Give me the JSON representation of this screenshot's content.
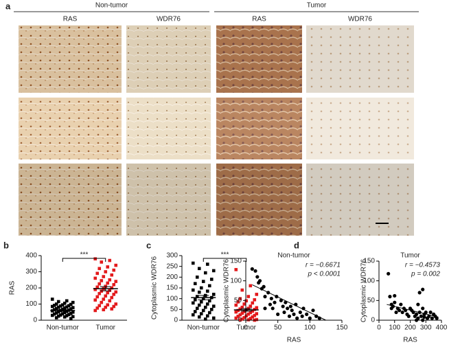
{
  "panel_a": {
    "label": "a",
    "groups": [
      {
        "name": "Non-tumor",
        "columns": [
          "RAS",
          "WDR76"
        ]
      },
      {
        "name": "Tumor",
        "columns": [
          "RAS",
          "WDR76"
        ]
      }
    ]
  },
  "chart_data": [
    {
      "type": "dot",
      "panel_label": "b",
      "ylabel": "RAS",
      "categories": [
        "Non-tumor",
        "Tumor"
      ],
      "colors": [
        "#000000",
        "#e31a1c"
      ],
      "markers": [
        "square",
        "square"
      ],
      "values": [
        [
          130,
          120,
          115,
          110,
          105,
          100,
          98,
          95,
          92,
          90,
          88,
          85,
          82,
          80,
          78,
          75,
          72,
          70,
          68,
          65,
          62,
          60,
          58,
          55,
          52,
          50,
          48,
          45,
          42,
          40,
          38,
          35,
          32,
          30,
          28,
          25,
          22,
          20,
          15,
          10
        ],
        [
          380,
          370,
          360,
          340,
          330,
          320,
          310,
          300,
          290,
          280,
          270,
          260,
          250,
          245,
          240,
          230,
          225,
          220,
          210,
          205,
          200,
          195,
          190,
          185,
          180,
          175,
          170,
          165,
          160,
          150,
          145,
          140,
          130,
          125,
          120,
          110,
          100,
          95,
          90,
          85,
          80,
          75,
          70,
          65,
          60
        ]
      ],
      "mean": [
        60,
        195
      ],
      "sem": [
        5,
        13
      ],
      "significance": "***",
      "ylim": [
        0,
        400
      ],
      "yticks": [
        0,
        100,
        200,
        300,
        400
      ]
    },
    {
      "type": "dot",
      "panel_label": "c",
      "ylabel": "Cytoplasmic WDR76",
      "categories": [
        "Non-tumor",
        "Tumor"
      ],
      "colors": [
        "#000000",
        "#e31a1c"
      ],
      "markers": [
        "square",
        "square"
      ],
      "values": [
        [
          265,
          260,
          240,
          230,
          220,
          200,
          190,
          180,
          170,
          160,
          150,
          140,
          135,
          130,
          120,
          115,
          110,
          105,
          100,
          95,
          90,
          85,
          80,
          75,
          70,
          65,
          60,
          55,
          50,
          45,
          40,
          35,
          30,
          25,
          20,
          15,
          10,
          5
        ],
        [
          235,
          160,
          140,
          120,
          110,
          100,
          95,
          90,
          85,
          80,
          75,
          70,
          65,
          60,
          58,
          55,
          52,
          50,
          48,
          45,
          42,
          40,
          38,
          35,
          32,
          30,
          28,
          25,
          22,
          20,
          18,
          15,
          12,
          10,
          8,
          5,
          3,
          2,
          1,
          0
        ]
      ],
      "mean": [
        105,
        48
      ],
      "sem": [
        10,
        6
      ],
      "significance": "***",
      "ylim": [
        0,
        300
      ],
      "yticks": [
        0,
        50,
        100,
        150,
        200,
        250,
        300
      ]
    },
    {
      "type": "scatter",
      "panel_label": "d",
      "title": "Non-tumor",
      "xlabel": "RAS",
      "ylabel": "Cytoplasmic WDR76",
      "color": "#000000",
      "x": [
        10,
        15,
        18,
        20,
        22,
        25,
        28,
        30,
        30,
        35,
        38,
        40,
        42,
        45,
        48,
        50,
        55,
        58,
        60,
        62,
        65,
        68,
        70,
        72,
        75,
        78,
        80,
        85,
        88,
        90,
        95,
        100,
        105,
        110,
        115
      ],
      "values": [
        130,
        125,
        110,
        95,
        100,
        80,
        85,
        60,
        30,
        70,
        40,
        55,
        30,
        45,
        60,
        15,
        50,
        35,
        20,
        45,
        30,
        10,
        35,
        25,
        15,
        40,
        5,
        20,
        10,
        30,
        15,
        5,
        25,
        10,
        5
      ],
      "fit": {
        "x": [
          10,
          125
        ],
        "y": [
          90,
          0
        ]
      },
      "annotations": [
        "r = −0.6671",
        "p < 0.0001"
      ],
      "xlim": [
        0,
        150
      ],
      "xticks": [
        0,
        50,
        100,
        150
      ],
      "ylim": [
        0,
        150
      ],
      "yticks": [
        0,
        50,
        100,
        150
      ]
    },
    {
      "type": "scatter",
      "title": "Tumor",
      "xlabel": "RAS",
      "ylabel": "Cytoplasmic WDR76",
      "color": "#000000",
      "x": [
        60,
        70,
        80,
        80,
        90,
        100,
        110,
        120,
        130,
        140,
        150,
        160,
        170,
        180,
        190,
        200,
        210,
        220,
        230,
        240,
        250,
        250,
        260,
        260,
        270,
        280,
        280,
        290,
        300,
        310,
        320,
        330,
        340,
        350,
        360,
        370,
        280,
        290,
        240,
        100
      ],
      "values": [
        118,
        60,
        40,
        30,
        35,
        45,
        20,
        30,
        25,
        40,
        20,
        30,
        25,
        15,
        10,
        30,
        25,
        20,
        10,
        15,
        40,
        5,
        70,
        20,
        10,
        78,
        30,
        15,
        20,
        5,
        10,
        20,
        5,
        15,
        10,
        5,
        0,
        8,
        0,
        62
      ],
      "fit": {
        "x": [
          50,
          380
        ],
        "y": [
          40,
          8
        ]
      },
      "annotations": [
        "r = −0.4573",
        "p = 0.002"
      ],
      "xlim": [
        0,
        400
      ],
      "xticks": [
        0,
        100,
        200,
        300,
        400
      ],
      "ylim": [
        0,
        150
      ],
      "yticks": [
        0,
        50,
        100,
        150
      ]
    }
  ]
}
